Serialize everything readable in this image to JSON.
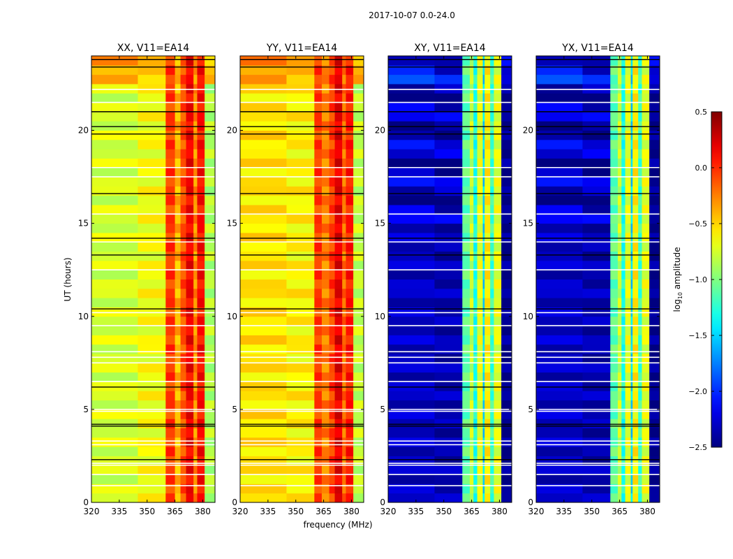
{
  "chart_data": {
    "type": "heatmap",
    "suptitle": "2017-10-07 0.0-24.0",
    "xlabel": "frequency (MHz)",
    "ylabel": "UT (hours)",
    "xlim": [
      320,
      386.6
    ],
    "ylim": [
      0,
      24
    ],
    "xticks": [
      "320",
      "335",
      "350",
      "365",
      "380"
    ],
    "xtick_values": [
      320,
      335,
      350,
      365,
      380
    ],
    "yticks": [
      "0",
      "5",
      "10",
      "15",
      "20"
    ],
    "ytick_values": [
      0,
      5,
      10,
      15,
      20
    ],
    "colorbar": {
      "label": "log10 amplitude",
      "label_main": "log",
      "label_sub": "10",
      "label_rest": " amplitude",
      "colormap": "jet",
      "range": [
        -2.5,
        0.5
      ],
      "ticks": [
        "0.5",
        "0.0",
        "−0.5",
        "−1.0",
        "−1.5",
        "−2.0",
        "−2.5"
      ],
      "tick_values": [
        0.5,
        0.0,
        -0.5,
        -1.0,
        -1.5,
        -2.0,
        -2.5
      ]
    },
    "flagged_times_white": [
      0.9,
      1.5,
      2.0,
      2.1,
      3.1,
      3.3,
      4.9,
      5.0,
      6.5,
      7.5,
      7.8,
      8.1,
      9.5,
      10.2,
      12.5,
      14.0,
      15.5,
      17.5,
      18.0,
      21.5,
      22.2
    ],
    "dark_times": [
      2.3,
      4.1,
      4.2,
      6.2,
      10.4,
      13.3,
      14.2,
      16.6,
      19.8,
      20.2,
      21.0,
      23.4,
      23.8
    ],
    "panels": [
      {
        "title": "XX, V11=EA14",
        "bands": [
          [
            320,
            345,
            -0.75
          ],
          [
            345,
            360,
            -0.65
          ],
          [
            360,
            365,
            -0.05
          ],
          [
            365,
            368,
            -0.4
          ],
          [
            368,
            371,
            -0.1
          ],
          [
            371,
            375,
            0.15
          ],
          [
            375,
            377,
            -0.3
          ],
          [
            377,
            381,
            0.1
          ],
          [
            381,
            386.6,
            -0.85
          ]
        ],
        "top_level": -0.45
      },
      {
        "title": "YY, V11=EA14",
        "bands": [
          [
            320,
            345,
            -0.55
          ],
          [
            345,
            360,
            -0.6
          ],
          [
            360,
            364,
            -0.05
          ],
          [
            364,
            368,
            -0.25
          ],
          [
            368,
            371,
            -0.05
          ],
          [
            371,
            375,
            0.2
          ],
          [
            375,
            377,
            -0.2
          ],
          [
            377,
            381,
            0.05
          ],
          [
            381,
            386.6,
            -0.8
          ]
        ],
        "top_level": -0.4
      },
      {
        "title": "XY, V11=EA14",
        "bands": [
          [
            320,
            345,
            -2.3
          ],
          [
            345,
            360,
            -2.35
          ],
          [
            360,
            364,
            -1.1
          ],
          [
            364,
            366,
            -0.8
          ],
          [
            366,
            368,
            -1.3
          ],
          [
            368,
            371,
            -0.7
          ],
          [
            371,
            372,
            -1.5
          ],
          [
            372,
            375,
            -0.6
          ],
          [
            375,
            377,
            -1.2
          ],
          [
            377,
            381,
            -0.7
          ],
          [
            381,
            386.6,
            -2.45
          ]
        ],
        "top_level": -2.2
      },
      {
        "title": "YX, V11=EA14",
        "bands": [
          [
            320,
            345,
            -2.3
          ],
          [
            345,
            360,
            -2.35
          ],
          [
            360,
            364,
            -1.1
          ],
          [
            364,
            366,
            -0.8
          ],
          [
            366,
            368,
            -1.3
          ],
          [
            368,
            371,
            -0.7
          ],
          [
            371,
            372,
            -1.5
          ],
          [
            372,
            375,
            -0.6
          ],
          [
            375,
            377,
            -1.2
          ],
          [
            377,
            381,
            -0.7
          ],
          [
            381,
            386.6,
            -2.45
          ]
        ],
        "top_level": -2.2
      }
    ]
  }
}
